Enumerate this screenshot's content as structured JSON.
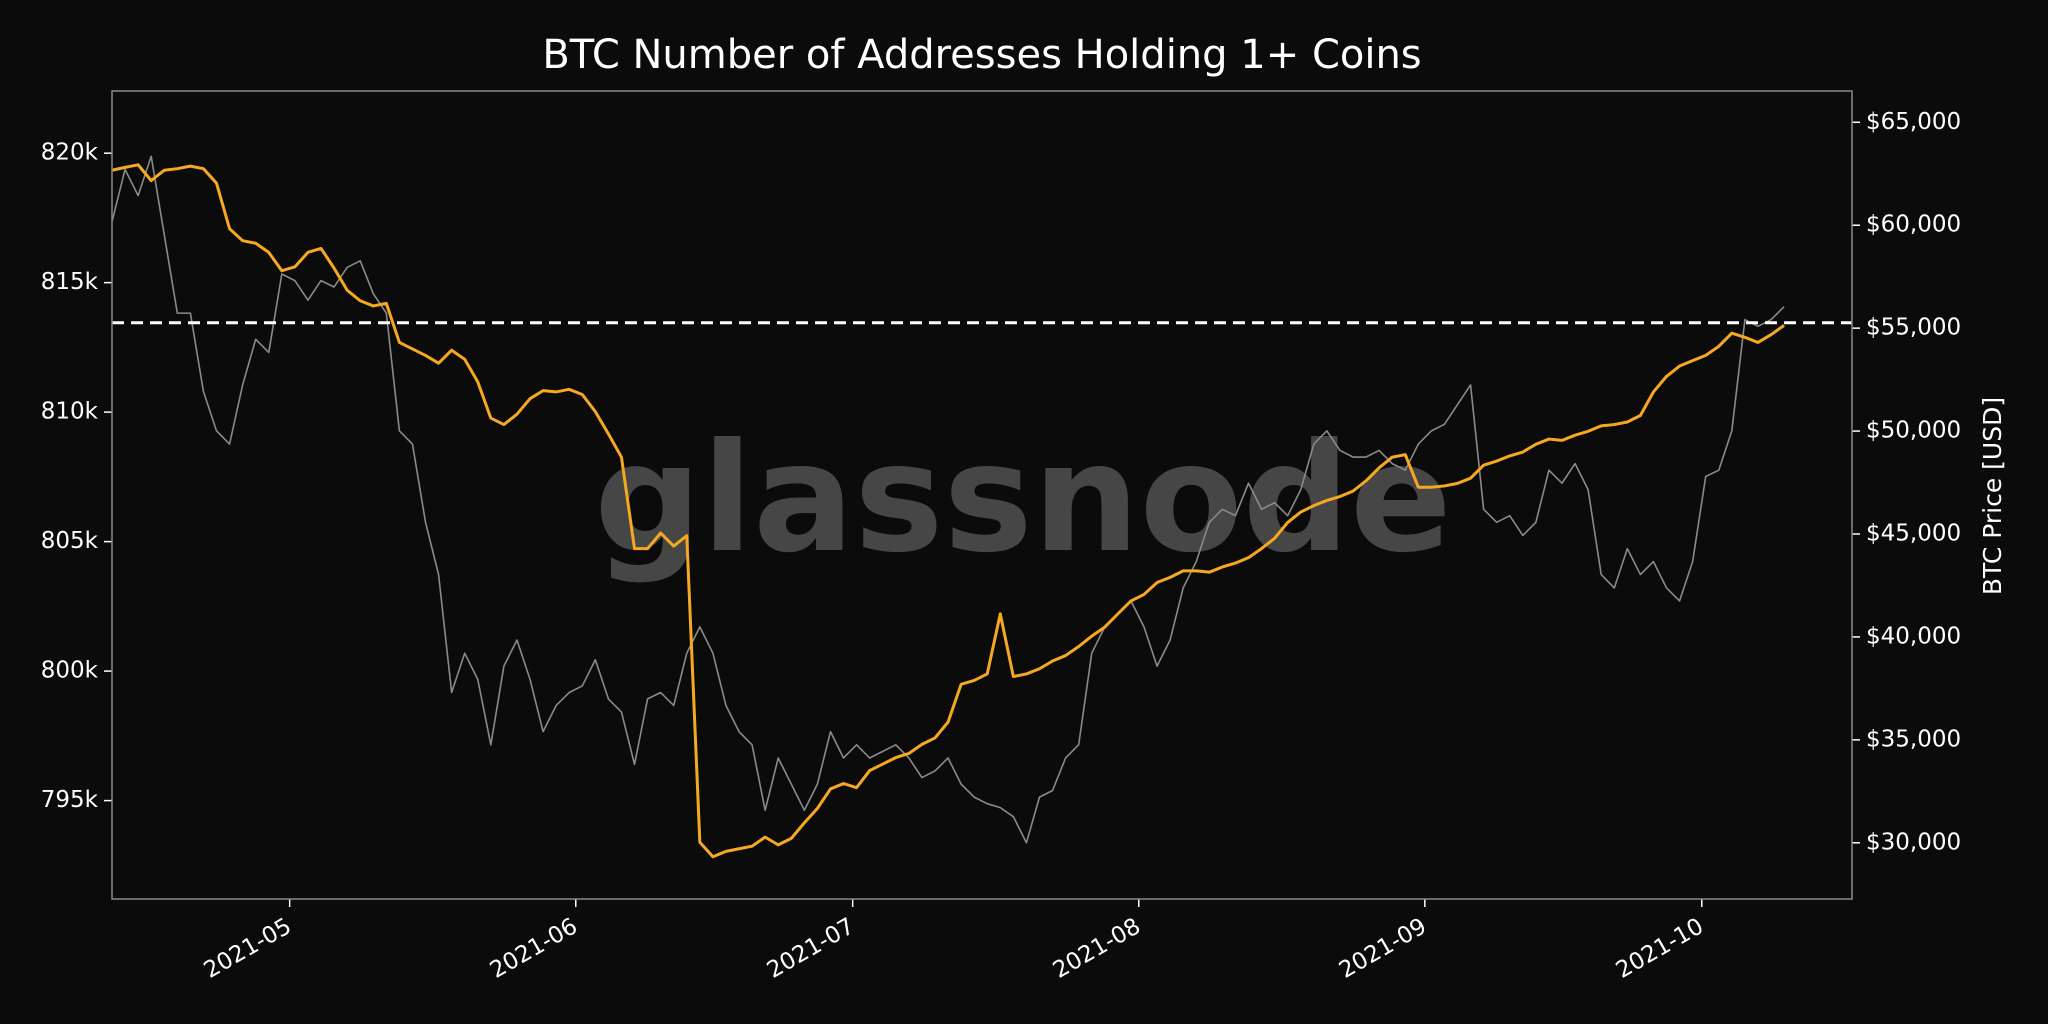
{
  "chart_data": {
    "type": "line",
    "title": "BTC Number of Addresses Holding 1+ Coins",
    "y2_label": "BTC Price [USD]",
    "watermark": "glassnode",
    "xlim": [
      0,
      133.2
    ],
    "xticks": [
      {
        "value": 13.6,
        "label": "2021-05"
      },
      {
        "value": 35.5,
        "label": "2021-06"
      },
      {
        "value": 56.7,
        "label": "2021-07"
      },
      {
        "value": 78.6,
        "label": "2021-08"
      },
      {
        "value": 100.5,
        "label": "2021-09"
      },
      {
        "value": 121.7,
        "label": "2021-10"
      }
    ],
    "ylim": [
      791200,
      822400
    ],
    "yticks": [
      {
        "value": 795000,
        "label": "795k"
      },
      {
        "value": 800000,
        "label": "800k"
      },
      {
        "value": 805000,
        "label": "805k"
      },
      {
        "value": 810000,
        "label": "810k"
      },
      {
        "value": 815000,
        "label": "815k"
      },
      {
        "value": 820000,
        "label": "820k"
      }
    ],
    "y2lim": [
      27270,
      66520
    ],
    "y2ticks": [
      {
        "value": 30000,
        "label": "$30,000"
      },
      {
        "value": 35000,
        "label": "$35,000"
      },
      {
        "value": 40000,
        "label": "$40,000"
      },
      {
        "value": 45000,
        "label": "$45,000"
      },
      {
        "value": 50000,
        "label": "$50,000"
      },
      {
        "value": 55000,
        "label": "$55,000"
      },
      {
        "value": 60000,
        "label": "$60,000"
      },
      {
        "value": 65000,
        "label": "$65,000"
      }
    ],
    "reference_line": {
      "value": 813450,
      "color": "#ffffff"
    },
    "series": [
      {
        "color": "#8a8a8a",
        "axis": "y2",
        "values": [
          60170,
          62710,
          61440,
          63350,
          59540,
          55730,
          55730,
          51920,
          50010,
          49370,
          52240,
          54460,
          53820,
          57630,
          57310,
          56360,
          57310,
          57000,
          57950,
          58270,
          56680,
          55730,
          50010,
          49370,
          45570,
          43030,
          37300,
          39210,
          37940,
          34760,
          38580,
          39850,
          37940,
          35400,
          36670,
          37300,
          37620,
          38890,
          36990,
          36350,
          33810,
          36990,
          37300,
          36670,
          39210,
          40490,
          39210,
          36670,
          35400,
          34760,
          31580,
          34120,
          32850,
          31580,
          32850,
          35400,
          34120,
          34760,
          34120,
          34440,
          34760,
          34120,
          33170,
          33490,
          34120,
          32850,
          32220,
          31900,
          31710,
          31270,
          30000,
          32220,
          32540,
          34120,
          34760,
          39210,
          40490,
          41120,
          41750,
          40490,
          38580,
          39850,
          42380,
          43660,
          45570,
          46200,
          45890,
          47470,
          46200,
          46520,
          45890,
          47150,
          49370,
          50010,
          49060,
          48740,
          48740,
          49060,
          48420,
          48100,
          49370,
          50010,
          50330,
          51290,
          52240,
          46200,
          45570,
          45890,
          44930,
          45570,
          48100,
          47470,
          48420,
          47150,
          43030,
          42380,
          44290,
          43030,
          43660,
          42380,
          41750,
          43660,
          47790,
          48100,
          50010,
          55410,
          55090,
          55410,
          56040
        ]
      },
      {
        "color": "#f7a823",
        "axis": "y",
        "values": [
          819340,
          819450,
          819550,
          818940,
          819340,
          819400,
          819500,
          819400,
          818840,
          817080,
          816620,
          816520,
          816170,
          815460,
          815610,
          816170,
          816320,
          815560,
          814710,
          814300,
          814100,
          814200,
          812690,
          812440,
          812190,
          811890,
          812390,
          812040,
          811170,
          809770,
          809520,
          809920,
          810520,
          810830,
          810780,
          810880,
          810680,
          810020,
          809160,
          808260,
          804730,
          804730,
          805330,
          804830,
          805230,
          793390,
          792830,
          793040,
          793140,
          793240,
          793590,
          793290,
          793540,
          794140,
          794700,
          795450,
          795660,
          795500,
          796160,
          796410,
          796660,
          796820,
          797170,
          797420,
          798030,
          799490,
          799640,
          799890,
          802210,
          799790,
          799890,
          800090,
          800390,
          800600,
          800950,
          801350,
          801700,
          802210,
          802710,
          802960,
          803420,
          803620,
          803870,
          803870,
          803820,
          804020,
          804170,
          804380,
          804730,
          805130,
          805740,
          806140,
          806390,
          806590,
          806740,
          806950,
          807350,
          807850,
          808260,
          808360,
          807100,
          807100,
          807150,
          807250,
          807450,
          807950,
          808110,
          808310,
          808460,
          808760,
          808960,
          808910,
          809110,
          809260,
          809470,
          809520,
          809620,
          809870,
          810780,
          811380,
          811780,
          811990,
          812190,
          812540,
          813050,
          812890,
          812690,
          812990,
          813350
        ]
      }
    ]
  }
}
